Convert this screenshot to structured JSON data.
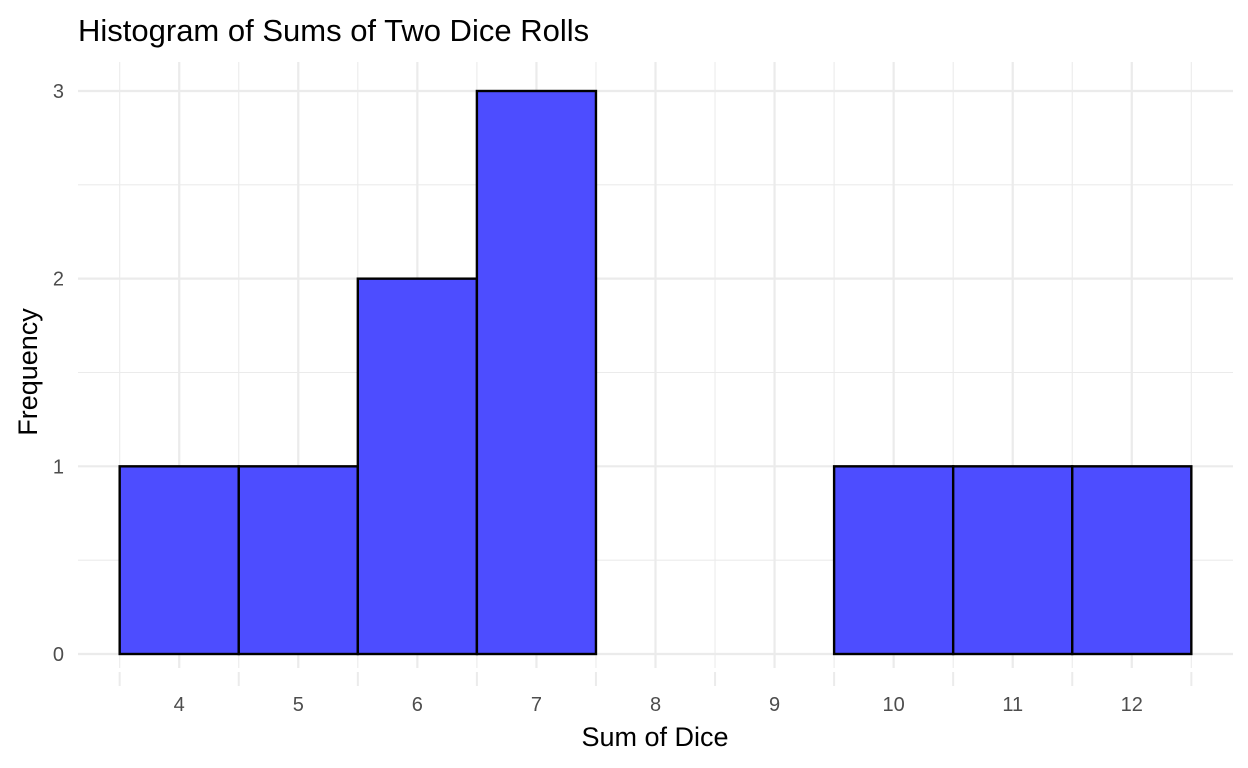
{
  "chart_data": {
    "type": "bar",
    "title": "Histogram of Sums of Two Dice Rolls",
    "xlabel": "Sum of Dice",
    "ylabel": "Frequency",
    "categories": [
      "4",
      "5",
      "6",
      "7",
      "8",
      "9",
      "10",
      "11",
      "12"
    ],
    "values": [
      1,
      1,
      2,
      3,
      0,
      0,
      1,
      1,
      1
    ],
    "bin_width": 1,
    "xlim": [
      3.5,
      12.5
    ],
    "ylim": [
      0,
      3
    ],
    "x_ticks": [
      "4",
      "5",
      "6",
      "7",
      "8",
      "9",
      "10",
      "11",
      "12"
    ],
    "y_ticks": [
      "0",
      "1",
      "2",
      "3"
    ],
    "grid": true,
    "legend": "none",
    "bar_fill_color": "#4d4dff",
    "bar_edge_color": "#000000",
    "grid_color": "#ebebeb"
  }
}
